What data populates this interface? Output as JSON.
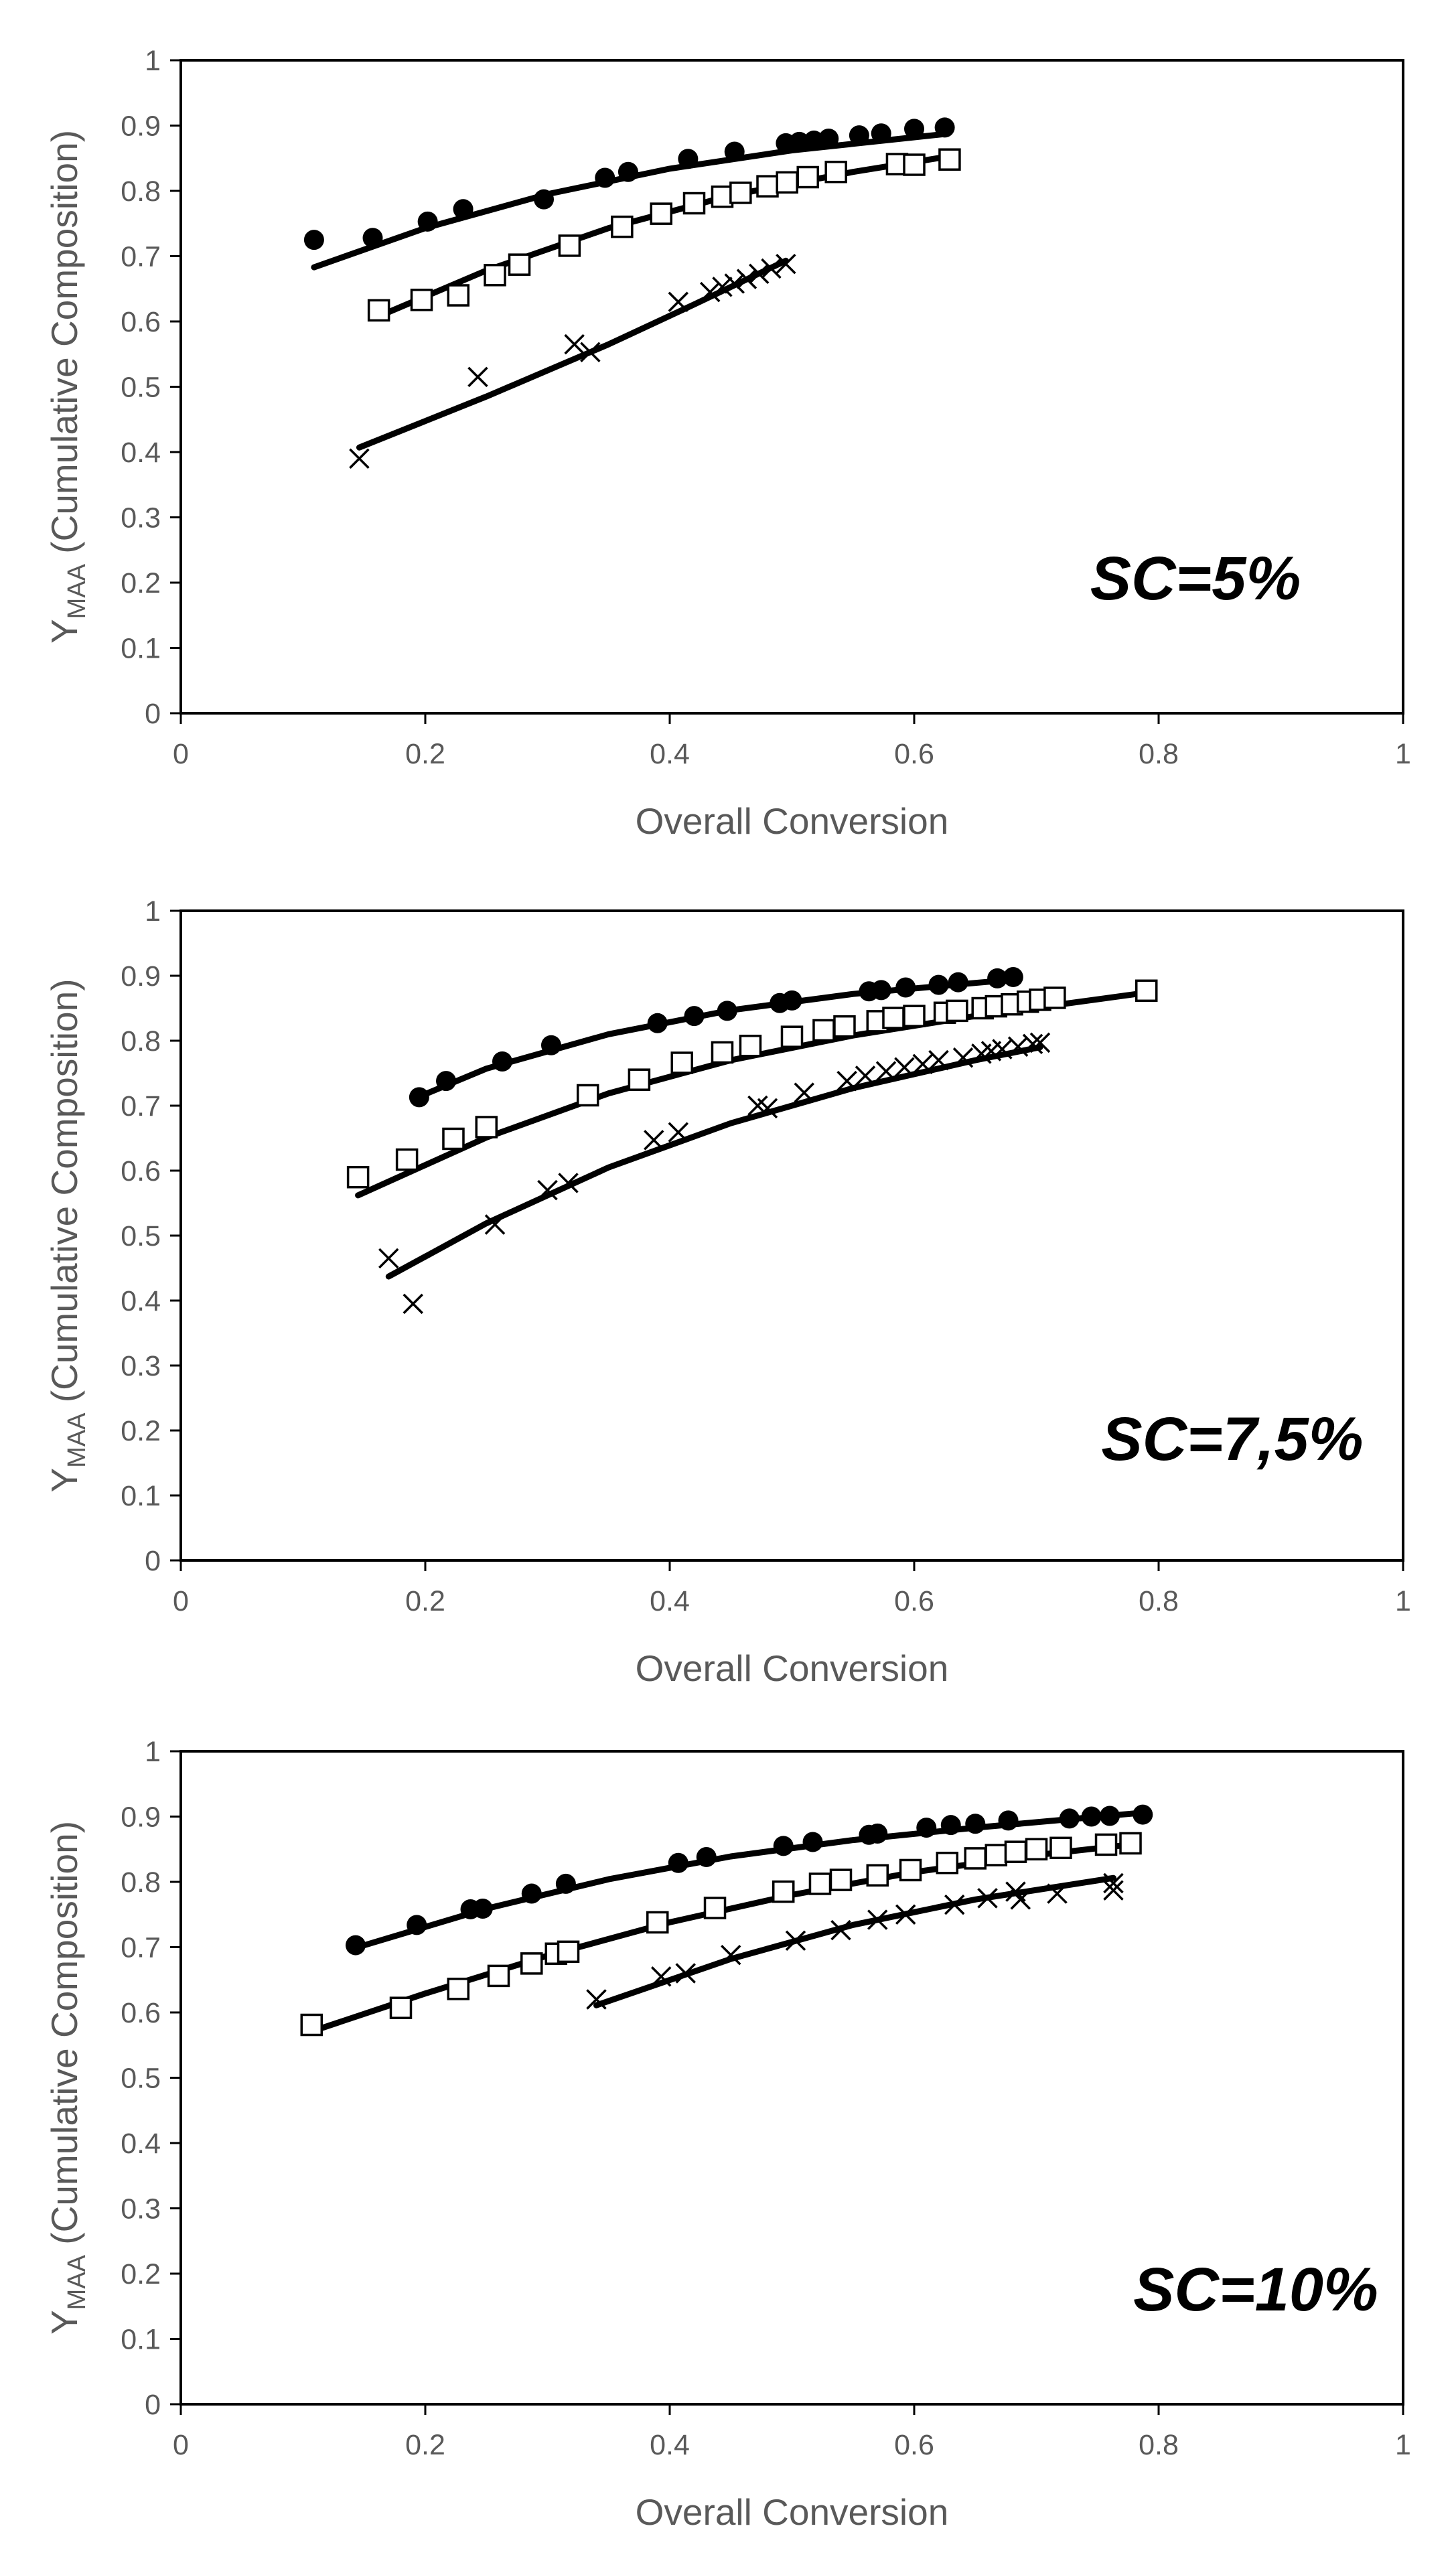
{
  "colors": {
    "marks": "#000000",
    "text": "#595959",
    "frame": "#000000",
    "background": "#ffffff"
  },
  "chart_data": [
    {
      "type": "scatter",
      "annotation": "SC=5%",
      "xlabel": "Overall Conversion",
      "ylabel": {
        "main": "Y",
        "subscript": "MAA",
        "rest": " (Cumulative Composition)"
      },
      "xlim": [
        0,
        1
      ],
      "ylim": [
        0,
        1
      ],
      "xticks": [
        "0",
        "0.2",
        "0.4",
        "0.6",
        "0.8",
        "1"
      ],
      "yticks": [
        "0",
        "0.1",
        "0.2",
        "0.3",
        "0.4",
        "0.5",
        "0.6",
        "0.7",
        "0.8",
        "0.9",
        "1"
      ],
      "grid": false,
      "legend": "none",
      "series": [
        {
          "marker": "filled-circle",
          "points": [
            [
              0.109,
              0.725
            ],
            [
              0.157,
              0.728
            ],
            [
              0.202,
              0.753
            ],
            [
              0.231,
              0.772
            ],
            [
              0.297,
              0.787
            ],
            [
              0.347,
              0.82
            ],
            [
              0.366,
              0.829
            ],
            [
              0.415,
              0.849
            ],
            [
              0.453,
              0.86
            ],
            [
              0.495,
              0.873
            ],
            [
              0.506,
              0.875
            ],
            [
              0.518,
              0.877
            ],
            [
              0.53,
              0.88
            ],
            [
              0.555,
              0.885
            ],
            [
              0.573,
              0.888
            ],
            [
              0.6,
              0.895
            ],
            [
              0.625,
              0.897
            ]
          ],
          "fit": [
            [
              0.109,
              0.683
            ],
            [
              0.2,
              0.743
            ],
            [
              0.3,
              0.795
            ],
            [
              0.4,
              0.834
            ],
            [
              0.5,
              0.862
            ],
            [
              0.6,
              0.882
            ],
            [
              0.625,
              0.887
            ]
          ]
        },
        {
          "marker": "open-square",
          "points": [
            [
              0.162,
              0.617
            ],
            [
              0.197,
              0.633
            ],
            [
              0.227,
              0.64
            ],
            [
              0.257,
              0.671
            ],
            [
              0.277,
              0.687
            ],
            [
              0.318,
              0.716
            ],
            [
              0.361,
              0.745
            ],
            [
              0.393,
              0.765
            ],
            [
              0.42,
              0.781
            ],
            [
              0.443,
              0.791
            ],
            [
              0.458,
              0.797
            ],
            [
              0.48,
              0.807
            ],
            [
              0.496,
              0.813
            ],
            [
              0.513,
              0.821
            ],
            [
              0.536,
              0.829
            ],
            [
              0.586,
              0.841
            ],
            [
              0.6,
              0.84
            ],
            [
              0.629,
              0.848
            ]
          ],
          "fit": [
            [
              0.162,
              0.608
            ],
            [
              0.25,
              0.678
            ],
            [
              0.35,
              0.743
            ],
            [
              0.45,
              0.793
            ],
            [
              0.55,
              0.829
            ],
            [
              0.629,
              0.853
            ]
          ]
        },
        {
          "marker": "x",
          "points": [
            [
              0.146,
              0.39
            ],
            [
              0.243,
              0.515
            ],
            [
              0.322,
              0.565
            ],
            [
              0.335,
              0.553
            ],
            [
              0.407,
              0.63
            ],
            [
              0.433,
              0.645
            ],
            [
              0.443,
              0.653
            ],
            [
              0.453,
              0.658
            ],
            [
              0.463,
              0.665
            ],
            [
              0.473,
              0.673
            ],
            [
              0.483,
              0.681
            ],
            [
              0.495,
              0.688
            ]
          ],
          "fit": [
            [
              0.146,
              0.407
            ],
            [
              0.25,
              0.485
            ],
            [
              0.35,
              0.565
            ],
            [
              0.42,
              0.626
            ],
            [
              0.495,
              0.693
            ]
          ]
        }
      ]
    },
    {
      "type": "scatter",
      "annotation": "SC=7,5%",
      "xlabel": "Overall Conversion",
      "ylabel": {
        "main": "Y",
        "subscript": "MAA",
        "rest": " (Cumulative Composition)"
      },
      "xlim": [
        0,
        1
      ],
      "ylim": [
        0,
        1
      ],
      "xticks": [
        "0",
        "0.2",
        "0.4",
        "0.6",
        "0.8",
        "1"
      ],
      "yticks": [
        "0",
        "0.1",
        "0.2",
        "0.3",
        "0.4",
        "0.5",
        "0.6",
        "0.7",
        "0.8",
        "0.9",
        "1"
      ],
      "grid": false,
      "legend": "none",
      "series": [
        {
          "marker": "filled-circle",
          "points": [
            [
              0.195,
              0.713
            ],
            [
              0.217,
              0.738
            ],
            [
              0.263,
              0.768
            ],
            [
              0.303,
              0.793
            ],
            [
              0.39,
              0.827
            ],
            [
              0.42,
              0.838
            ],
            [
              0.447,
              0.846
            ],
            [
              0.49,
              0.858
            ],
            [
              0.5,
              0.862
            ],
            [
              0.563,
              0.876
            ],
            [
              0.573,
              0.878
            ],
            [
              0.593,
              0.882
            ],
            [
              0.62,
              0.886
            ],
            [
              0.636,
              0.89
            ],
            [
              0.668,
              0.896
            ],
            [
              0.681,
              0.898
            ]
          ],
          "fit": [
            [
              0.19,
              0.71
            ],
            [
              0.25,
              0.757
            ],
            [
              0.35,
              0.81
            ],
            [
              0.45,
              0.847
            ],
            [
              0.55,
              0.872
            ],
            [
              0.65,
              0.889
            ],
            [
              0.681,
              0.894
            ]
          ]
        },
        {
          "marker": "open-square",
          "points": [
            [
              0.145,
              0.59
            ],
            [
              0.185,
              0.617
            ],
            [
              0.223,
              0.649
            ],
            [
              0.25,
              0.667
            ],
            [
              0.333,
              0.716
            ],
            [
              0.375,
              0.74
            ],
            [
              0.41,
              0.766
            ],
            [
              0.443,
              0.782
            ],
            [
              0.466,
              0.792
            ],
            [
              0.5,
              0.806
            ],
            [
              0.526,
              0.816
            ],
            [
              0.543,
              0.822
            ],
            [
              0.57,
              0.83
            ],
            [
              0.583,
              0.835
            ],
            [
              0.6,
              0.838
            ],
            [
              0.625,
              0.843
            ],
            [
              0.635,
              0.846
            ],
            [
              0.656,
              0.85
            ],
            [
              0.667,
              0.853
            ],
            [
              0.68,
              0.856
            ],
            [
              0.693,
              0.86
            ],
            [
              0.703,
              0.863
            ],
            [
              0.715,
              0.866
            ],
            [
              0.79,
              0.877
            ]
          ],
          "fit": [
            [
              0.145,
              0.562
            ],
            [
              0.25,
              0.651
            ],
            [
              0.35,
              0.719
            ],
            [
              0.45,
              0.77
            ],
            [
              0.55,
              0.808
            ],
            [
              0.65,
              0.838
            ],
            [
              0.79,
              0.874
            ]
          ]
        },
        {
          "marker": "x",
          "points": [
            [
              0.17,
              0.465
            ],
            [
              0.19,
              0.395
            ],
            [
              0.257,
              0.517
            ],
            [
              0.3,
              0.57
            ],
            [
              0.317,
              0.581
            ],
            [
              0.387,
              0.647
            ],
            [
              0.407,
              0.659
            ],
            [
              0.472,
              0.7
            ],
            [
              0.48,
              0.696
            ],
            [
              0.51,
              0.72
            ],
            [
              0.545,
              0.738
            ],
            [
              0.56,
              0.746
            ],
            [
              0.577,
              0.753
            ],
            [
              0.592,
              0.759
            ],
            [
              0.607,
              0.764
            ],
            [
              0.62,
              0.77
            ],
            [
              0.64,
              0.774
            ],
            [
              0.655,
              0.78
            ],
            [
              0.663,
              0.784
            ],
            [
              0.672,
              0.787
            ],
            [
              0.685,
              0.791
            ],
            [
              0.697,
              0.795
            ],
            [
              0.703,
              0.797
            ]
          ],
          "fit": [
            [
              0.17,
              0.437
            ],
            [
              0.25,
              0.519
            ],
            [
              0.35,
              0.605
            ],
            [
              0.45,
              0.673
            ],
            [
              0.55,
              0.727
            ],
            [
              0.65,
              0.77
            ],
            [
              0.703,
              0.79
            ]
          ]
        }
      ]
    },
    {
      "type": "scatter",
      "annotation": "SC=10%",
      "xlabel": "Overall Conversion",
      "ylabel": {
        "main": "Y",
        "subscript": "MAA",
        "rest": " (Cumulative Composition)"
      },
      "xlim": [
        0,
        1
      ],
      "ylim": [
        0,
        1
      ],
      "xticks": [
        "0",
        "0.2",
        "0.4",
        "0.6",
        "0.8",
        "1"
      ],
      "yticks": [
        "0",
        "0.1",
        "0.2",
        "0.3",
        "0.4",
        "0.5",
        "0.6",
        "0.7",
        "0.8",
        "0.9",
        "1"
      ],
      "grid": false,
      "legend": "none",
      "series": [
        {
          "marker": "filled-circle",
          "points": [
            [
              0.143,
              0.703
            ],
            [
              0.193,
              0.734
            ],
            [
              0.237,
              0.758
            ],
            [
              0.247,
              0.759
            ],
            [
              0.287,
              0.782
            ],
            [
              0.315,
              0.797
            ],
            [
              0.407,
              0.829
            ],
            [
              0.43,
              0.838
            ],
            [
              0.493,
              0.855
            ],
            [
              0.517,
              0.861
            ],
            [
              0.563,
              0.872
            ],
            [
              0.57,
              0.874
            ],
            [
              0.61,
              0.883
            ],
            [
              0.63,
              0.887
            ],
            [
              0.65,
              0.889
            ],
            [
              0.677,
              0.894
            ],
            [
              0.727,
              0.897
            ],
            [
              0.745,
              0.9
            ],
            [
              0.76,
              0.901
            ],
            [
              0.787,
              0.903
            ]
          ],
          "fit": [
            [
              0.143,
              0.699
            ],
            [
              0.25,
              0.759
            ],
            [
              0.35,
              0.804
            ],
            [
              0.45,
              0.839
            ],
            [
              0.55,
              0.864
            ],
            [
              0.65,
              0.883
            ],
            [
              0.787,
              0.906
            ]
          ]
        },
        {
          "marker": "open-square",
          "points": [
            [
              0.107,
              0.581
            ],
            [
              0.18,
              0.607
            ],
            [
              0.227,
              0.636
            ],
            [
              0.26,
              0.656
            ],
            [
              0.287,
              0.675
            ],
            [
              0.307,
              0.69
            ],
            [
              0.317,
              0.693
            ],
            [
              0.39,
              0.738
            ],
            [
              0.437,
              0.76
            ],
            [
              0.493,
              0.785
            ],
            [
              0.523,
              0.797
            ],
            [
              0.54,
              0.803
            ],
            [
              0.57,
              0.81
            ],
            [
              0.597,
              0.818
            ],
            [
              0.627,
              0.829
            ],
            [
              0.65,
              0.836
            ],
            [
              0.667,
              0.841
            ],
            [
              0.683,
              0.846
            ],
            [
              0.7,
              0.85
            ],
            [
              0.72,
              0.852
            ],
            [
              0.757,
              0.857
            ],
            [
              0.777,
              0.859
            ]
          ],
          "fit": [
            [
              0.107,
              0.571
            ],
            [
              0.2,
              0.629
            ],
            [
              0.3,
              0.687
            ],
            [
              0.4,
              0.738
            ],
            [
              0.5,
              0.78
            ],
            [
              0.6,
              0.815
            ],
            [
              0.7,
              0.841
            ],
            [
              0.777,
              0.857
            ]
          ]
        },
        {
          "marker": "x",
          "points": [
            [
              0.34,
              0.62
            ],
            [
              0.393,
              0.655
            ],
            [
              0.413,
              0.66
            ],
            [
              0.45,
              0.688
            ],
            [
              0.503,
              0.71
            ],
            [
              0.54,
              0.726
            ],
            [
              0.57,
              0.742
            ],
            [
              0.593,
              0.75
            ],
            [
              0.633,
              0.765
            ],
            [
              0.66,
              0.775
            ],
            [
              0.683,
              0.785
            ],
            [
              0.687,
              0.773
            ],
            [
              0.717,
              0.782
            ],
            [
              0.763,
              0.787
            ],
            [
              0.763,
              0.798
            ]
          ],
          "fit": [
            [
              0.34,
              0.611
            ],
            [
              0.45,
              0.682
            ],
            [
              0.55,
              0.734
            ],
            [
              0.65,
              0.773
            ],
            [
              0.763,
              0.806
            ]
          ]
        }
      ]
    }
  ]
}
